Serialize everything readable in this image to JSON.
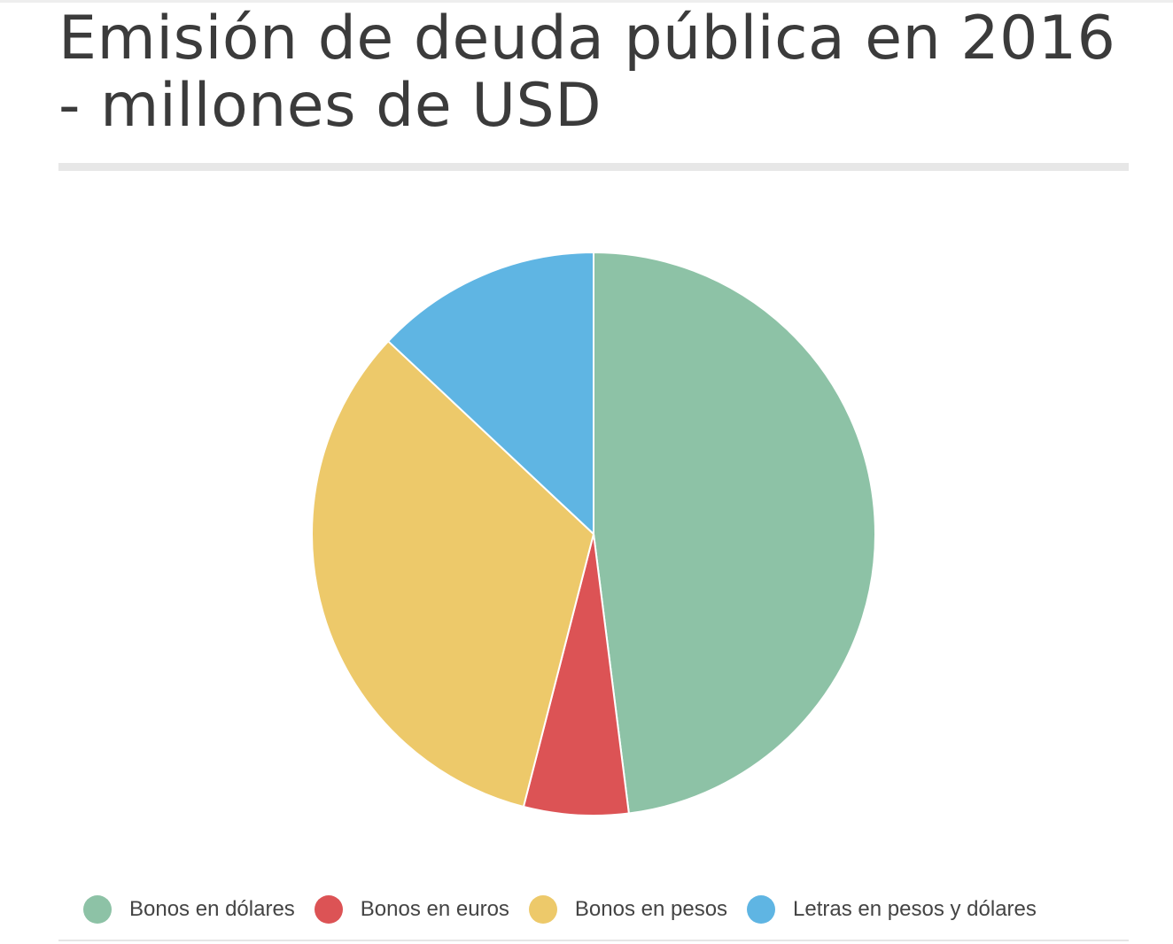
{
  "title": "Emisión de deuda pública en 2016 - millones de USD",
  "colors": {
    "Bonos en dólares": "#8dc2a6",
    "Bonos en euros": "#dc5355",
    "Bonos en pesos": "#edc96a",
    "Letras en pesos y dólares": "#5fb5e3"
  },
  "legend": {
    "items": [
      {
        "label": "Bonos en dólares",
        "color": "#8dc2a6"
      },
      {
        "label": "Bonos en euros",
        "color": "#dc5355"
      },
      {
        "label": "Bonos en pesos",
        "color": "#edc96a"
      },
      {
        "label": "Letras en pesos y dólares",
        "color": "#5fb5e3"
      }
    ]
  },
  "chart_data": {
    "type": "pie",
    "title": "Emisión de deuda pública en 2016 - millones de USD",
    "unit": "millones de USD",
    "start_angle_deg": 0,
    "direction": "clockwise",
    "legend_position": "bottom",
    "labels": [
      "Bonos en dólares",
      "Bonos en euros",
      "Bonos en pesos",
      "Letras en pesos y dólares"
    ],
    "values": [
      48,
      6,
      33,
      13
    ],
    "colors": [
      "#8dc2a6",
      "#dc5355",
      "#edc96a",
      "#5fb5e3"
    ]
  }
}
